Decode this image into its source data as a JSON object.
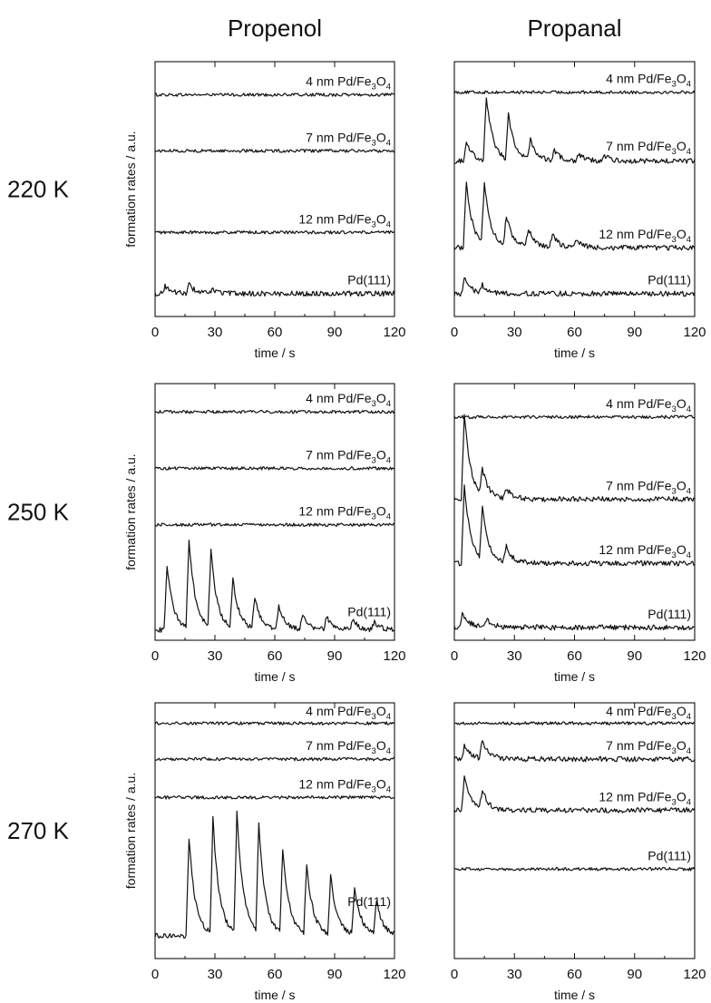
{
  "columns": [
    "Propenol",
    "Propanal"
  ],
  "rows": [
    "220 K",
    "250 K",
    "270 K"
  ],
  "ylabel": "formation rates / a.u.",
  "xlabel": "time / s",
  "x_ticks": [
    0,
    30,
    60,
    90,
    120
  ],
  "chart_data": [
    {
      "type": "line",
      "column": "Propenol",
      "row": "220 K",
      "xlabel": "time / s",
      "ylabel": "formation rates / a.u.",
      "xlim": [
        0,
        120
      ],
      "series": [
        {
          "name": "4 nm Pd/Fe3O4",
          "baseline": 0.87,
          "peaks": []
        },
        {
          "name": "7 nm Pd/Fe3O4",
          "baseline": 0.65,
          "peaks": []
        },
        {
          "name": "12 nm Pd/Fe3O4",
          "baseline": 0.33,
          "peaks": []
        },
        {
          "name": "Pd(111)",
          "baseline": 0.09,
          "peaks": [
            {
              "t": 5,
              "h": 0.03
            },
            {
              "t": 17,
              "h": 0.035
            },
            {
              "t": 29,
              "h": 0.015
            }
          ]
        }
      ]
    },
    {
      "type": "line",
      "column": "Propanal",
      "row": "220 K",
      "xlabel": "time / s",
      "ylabel": "formation rates / a.u.",
      "xlim": [
        0,
        120
      ],
      "series": [
        {
          "name": "4 nm Pd/Fe3O4",
          "baseline": 0.88,
          "peaks": []
        },
        {
          "name": "7 nm Pd/Fe3O4",
          "baseline": 0.61,
          "peaks": [
            {
              "t": 6,
              "h": 0.08
            },
            {
              "t": 16,
              "h": 0.25
            },
            {
              "t": 27,
              "h": 0.18
            },
            {
              "t": 38,
              "h": 0.08
            },
            {
              "t": 50,
              "h": 0.04
            },
            {
              "t": 62,
              "h": 0.03
            },
            {
              "t": 75,
              "h": 0.02
            }
          ]
        },
        {
          "name": "12 nm Pd/Fe3O4",
          "baseline": 0.27,
          "peaks": [
            {
              "t": 6,
              "h": 0.26
            },
            {
              "t": 15,
              "h": 0.24
            },
            {
              "t": 26,
              "h": 0.12
            },
            {
              "t": 37,
              "h": 0.07
            },
            {
              "t": 49,
              "h": 0.05
            },
            {
              "t": 61,
              "h": 0.03
            }
          ]
        },
        {
          "name": "Pd(111)",
          "baseline": 0.09,
          "peaks": [
            {
              "t": 5,
              "h": 0.06
            },
            {
              "t": 14,
              "h": 0.03
            }
          ]
        }
      ]
    },
    {
      "type": "line",
      "column": "Propenol",
      "row": "250 K",
      "xlabel": "time / s",
      "ylabel": "formation rates / a.u.",
      "xlim": [
        0,
        120
      ],
      "series": [
        {
          "name": "4 nm Pd/Fe3O4",
          "baseline": 0.89,
          "peaks": []
        },
        {
          "name": "7 nm Pd/Fe3O4",
          "baseline": 0.67,
          "peaks": []
        },
        {
          "name": "12 nm Pd/Fe3O4",
          "baseline": 0.45,
          "peaks": []
        },
        {
          "name": "Pd(111)",
          "baseline": 0.04,
          "peaks": [
            {
              "t": 6,
              "h": 0.25
            },
            {
              "t": 17,
              "h": 0.34
            },
            {
              "t": 28,
              "h": 0.3
            },
            {
              "t": 39,
              "h": 0.19
            },
            {
              "t": 50,
              "h": 0.12
            },
            {
              "t": 62,
              "h": 0.09
            },
            {
              "t": 74,
              "h": 0.06
            },
            {
              "t": 86,
              "h": 0.05
            },
            {
              "t": 99,
              "h": 0.04
            },
            {
              "t": 110,
              "h": 0.03
            }
          ]
        }
      ]
    },
    {
      "type": "line",
      "column": "Propanal",
      "row": "250 K",
      "xlabel": "time / s",
      "ylabel": "formation rates / a.u.",
      "xlim": [
        0,
        120
      ],
      "series": [
        {
          "name": "4 nm Pd/Fe3O4",
          "baseline": 0.87,
          "peaks": []
        },
        {
          "name": "7 nm Pd/Fe3O4",
          "baseline": 0.55,
          "peaks": [
            {
              "t": 5,
              "h": 0.33
            },
            {
              "t": 14,
              "h": 0.1
            },
            {
              "t": 26,
              "h": 0.04
            }
          ]
        },
        {
          "name": "12 nm Pd/Fe3O4",
          "baseline": 0.3,
          "peaks": [
            {
              "t": 5,
              "h": 0.31
            },
            {
              "t": 14,
              "h": 0.2
            },
            {
              "t": 26,
              "h": 0.06
            }
          ]
        },
        {
          "name": "Pd(111)",
          "baseline": 0.05,
          "peaks": [
            {
              "t": 4,
              "h": 0.06
            },
            {
              "t": 16,
              "h": 0.03
            }
          ]
        }
      ]
    },
    {
      "type": "line",
      "column": "Propenol",
      "row": "270 K",
      "xlabel": "time / s",
      "ylabel": "formation rates / a.u.",
      "xlim": [
        0,
        120
      ],
      "series": [
        {
          "name": "4 nm Pd/Fe3O4",
          "baseline": 0.92,
          "peaks": []
        },
        {
          "name": "7 nm Pd/Fe3O4",
          "baseline": 0.78,
          "peaks": []
        },
        {
          "name": "12 nm Pd/Fe3O4",
          "baseline": 0.63,
          "peaks": []
        },
        {
          "name": "Pd(111)",
          "baseline": 0.09,
          "peaks": [
            {
              "t": 17,
              "h": 0.38
            },
            {
              "t": 29,
              "h": 0.45
            },
            {
              "t": 41,
              "h": 0.47
            },
            {
              "t": 52,
              "h": 0.43
            },
            {
              "t": 64,
              "h": 0.33
            },
            {
              "t": 76,
              "h": 0.27
            },
            {
              "t": 88,
              "h": 0.23
            },
            {
              "t": 100,
              "h": 0.19
            },
            {
              "t": 111,
              "h": 0.13
            }
          ]
        }
      ]
    },
    {
      "type": "line",
      "column": "Propanal",
      "row": "270 K",
      "xlabel": "time / s",
      "ylabel": "formation rates / a.u.",
      "xlim": [
        0,
        120
      ],
      "series": [
        {
          "name": "4 nm Pd/Fe3O4",
          "baseline": 0.92,
          "peaks": []
        },
        {
          "name": "7 nm Pd/Fe3O4",
          "baseline": 0.78,
          "peaks": [
            {
              "t": 5,
              "h": 0.05
            },
            {
              "t": 14,
              "h": 0.07
            }
          ]
        },
        {
          "name": "12 nm Pd/Fe3O4",
          "baseline": 0.58,
          "peaks": [
            {
              "t": 5,
              "h": 0.13
            },
            {
              "t": 14,
              "h": 0.07
            }
          ]
        },
        {
          "name": "Pd(111)",
          "baseline": 0.35,
          "peaks": []
        }
      ]
    }
  ]
}
